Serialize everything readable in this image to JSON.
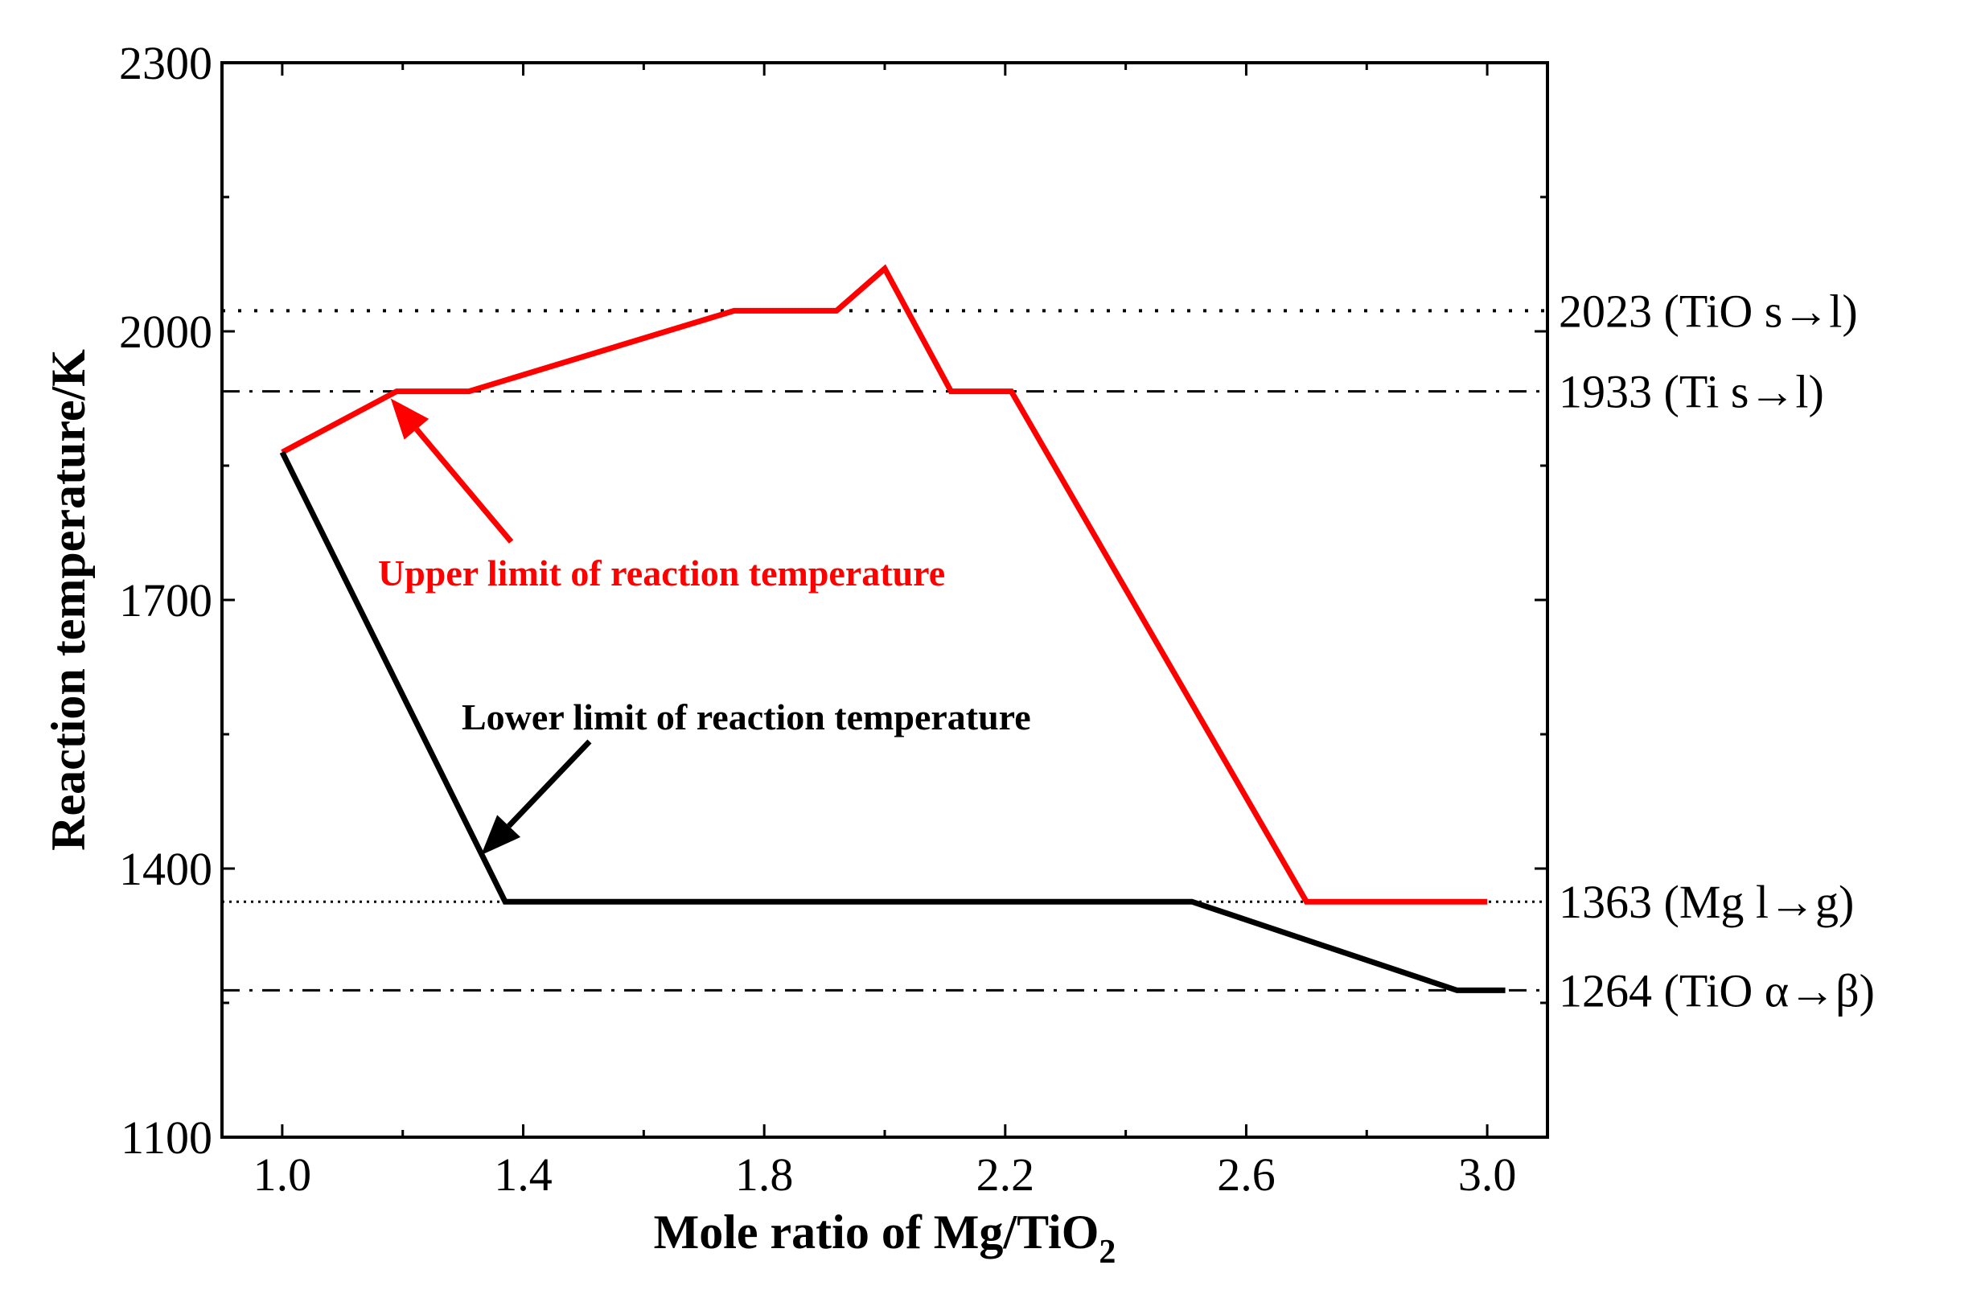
{
  "chart_data": {
    "type": "line",
    "title": "",
    "xlabel": "Mole ratio of Mg/TiO",
    "xlabel_sub": "2",
    "ylabel": "Reaction temperature/K",
    "xlim": [
      0.9,
      3.1
    ],
    "ylim": [
      1100,
      2300
    ],
    "x_ticks": [
      1.0,
      1.4,
      1.8,
      2.2,
      2.6,
      3.0
    ],
    "x_tick_labels": [
      "1.0",
      "1.4",
      "1.8",
      "2.2",
      "2.6",
      "3.0"
    ],
    "x_minor_ticks": [
      1.2,
      1.6,
      2.0,
      2.4,
      2.8
    ],
    "y_ticks": [
      1100,
      1400,
      1700,
      2000,
      2300
    ],
    "y_tick_labels": [
      "1100",
      "1400",
      "1700",
      "2000",
      "2300"
    ],
    "y_minor_ticks": [
      1250,
      1550,
      1850,
      2150
    ],
    "grid": false,
    "series": [
      {
        "name": "Upper limit of reaction temperature",
        "color": "#ff0000",
        "x": [
          1.0,
          1.19,
          1.31,
          1.75,
          1.92,
          2.0,
          2.11,
          2.21,
          2.7,
          3.0
        ],
        "y": [
          1865,
          1933,
          1933,
          2023,
          2023,
          2070,
          1933,
          1933,
          1363,
          1363
        ]
      },
      {
        "name": "Lower limit of reaction temperature",
        "color": "#000000",
        "x": [
          1.0,
          1.37,
          2.51,
          2.95,
          3.03
        ],
        "y": [
          1865,
          1363,
          1363,
          1264,
          1264
        ]
      }
    ],
    "reference_lines": [
      {
        "value": 2023,
        "label": "2023 (TiO s→l)",
        "style": "dotted"
      },
      {
        "value": 1933,
        "label": "1933  (Ti s→l)",
        "style": "dashdot"
      },
      {
        "value": 1363,
        "label": "1363  (Mg l→g)",
        "style": "dotted-fine"
      },
      {
        "value": 1264,
        "label": "1264  (TiO α→β)",
        "style": "dashdot"
      }
    ],
    "annotations": [
      {
        "text": "Upper limit of reaction temperature",
        "color": "#ff0000",
        "arrow_to_x": 1.18,
        "arrow_to_y": 1925,
        "arrow_from_x": 1.38,
        "arrow_from_y": 1765
      },
      {
        "text": "Lower limit of reaction temperature",
        "color": "#000000",
        "arrow_to_x": 1.33,
        "arrow_to_y": 1415,
        "arrow_from_x": 1.51,
        "arrow_from_y": 1542
      }
    ]
  }
}
